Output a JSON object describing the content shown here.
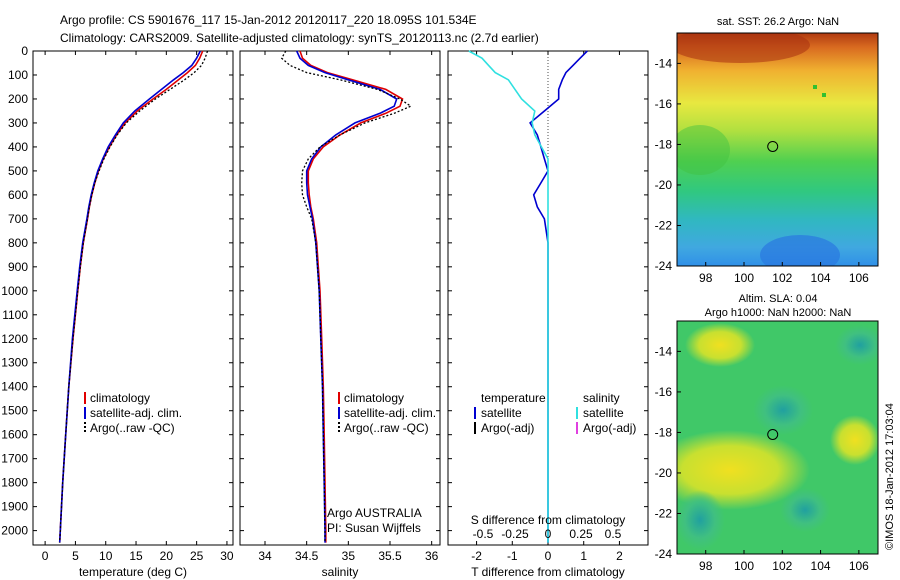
{
  "title": {
    "line1": "Argo profile: CS 5901676_117 15-Jan-2012 20120117_220 18.095S 101.534E",
    "line2": "Climatology: CARS2009. Satellite-adjusted climatology: synTS_20120113.nc (2.7d earlier)"
  },
  "side_text": "©IMOS 18-Jan-2012 17:03:04",
  "colors": {
    "climatology": "#e00000",
    "satellite": "#0000d0",
    "argo": "#000000",
    "sal_satellite": "#30e0e0",
    "sal_argo": "#e040e0"
  },
  "chart_data": [
    {
      "type": "line",
      "name": "temperature-profile",
      "xlabel": "temperature (deg C)",
      "xlim": [
        -2,
        31
      ],
      "xticks": [
        0,
        5,
        10,
        15,
        20,
        25,
        30
      ],
      "ylim": [
        0,
        2060
      ],
      "yticks": [
        0,
        100,
        200,
        300,
        400,
        500,
        600,
        700,
        800,
        900,
        1000,
        1100,
        1200,
        1300,
        1400,
        1500,
        1600,
        1700,
        1800,
        1900,
        2000
      ],
      "legend": [
        "climatology",
        "satellite-adj. clim.",
        "Argo(..raw -QC)"
      ],
      "series": [
        {
          "name": "climatology",
          "depth": [
            0,
            30,
            60,
            90,
            120,
            160,
            200,
            250,
            300,
            350,
            400,
            450,
            500,
            550,
            600,
            650,
            700,
            800,
            900,
            1000,
            1200,
            1400,
            1600,
            1800,
            2000,
            2050
          ],
          "values": [
            26.0,
            25.5,
            24.8,
            23.5,
            22.0,
            20.0,
            17.8,
            15.2,
            13.2,
            11.8,
            10.6,
            9.6,
            8.8,
            8.2,
            7.7,
            7.3,
            7.0,
            6.3,
            5.8,
            5.4,
            4.6,
            3.9,
            3.4,
            2.9,
            2.5,
            2.4
          ]
        },
        {
          "name": "satellite-adj. clim.",
          "depth": [
            0,
            30,
            60,
            90,
            120,
            160,
            200,
            250,
            300,
            350,
            400,
            450,
            500,
            550,
            600,
            650,
            700,
            800,
            900,
            1000,
            1200,
            1400,
            1600,
            1800,
            2000,
            2050
          ],
          "values": [
            25.6,
            25.0,
            24.2,
            22.8,
            21.2,
            19.2,
            17.2,
            14.8,
            12.9,
            11.6,
            10.4,
            9.5,
            8.7,
            8.1,
            7.6,
            7.2,
            6.9,
            6.2,
            5.7,
            5.3,
            4.5,
            3.9,
            3.4,
            2.9,
            2.5,
            2.4
          ]
        },
        {
          "name": "Argo(..raw -QC)",
          "depth": [
            0,
            30,
            60,
            90,
            120,
            160,
            200,
            250,
            300,
            350,
            400,
            450,
            500,
            550,
            600,
            650,
            700,
            800,
            900,
            1000,
            1200,
            1400,
            1600,
            1800,
            2000,
            2050
          ],
          "values": [
            26.8,
            26.4,
            25.8,
            24.6,
            23.0,
            20.6,
            18.2,
            15.6,
            13.4,
            11.9,
            10.7,
            9.7,
            8.9,
            8.2,
            7.7,
            7.3,
            7.0,
            6.3,
            5.8,
            5.4,
            4.6,
            3.9,
            3.4,
            2.9,
            2.5,
            2.4
          ]
        }
      ]
    },
    {
      "type": "line",
      "name": "salinity-profile",
      "xlabel": "salinity",
      "xlim": [
        33.7,
        36.1
      ],
      "xticks": [
        34,
        34.5,
        35,
        35.5,
        36
      ],
      "xticklabels": [
        "34",
        "34.5",
        "35",
        "35.5",
        "36"
      ],
      "ylim": [
        0,
        2060
      ],
      "legend": [
        "climatology",
        "satellite-adj. clim.",
        "Argo(..raw -QC)"
      ],
      "annotation": [
        "Argo AUSTRALIA",
        "PI: Susan Wijffels"
      ],
      "series": [
        {
          "name": "climatology",
          "depth": [
            0,
            30,
            60,
            90,
            120,
            160,
            200,
            230,
            260,
            300,
            350,
            400,
            450,
            500,
            550,
            600,
            650,
            700,
            800,
            900,
            1000,
            1200,
            1400,
            1600,
            1800,
            2000,
            2050
          ],
          "values": [
            34.42,
            34.45,
            34.55,
            34.75,
            35.05,
            35.45,
            35.65,
            35.62,
            35.45,
            35.15,
            34.9,
            34.7,
            34.58,
            34.52,
            34.52,
            34.53,
            34.55,
            34.58,
            34.62,
            34.64,
            34.66,
            34.68,
            34.7,
            34.71,
            34.72,
            34.73,
            34.73
          ]
        },
        {
          "name": "satellite-adj. clim.",
          "depth": [
            0,
            30,
            60,
            90,
            120,
            160,
            200,
            230,
            260,
            300,
            350,
            400,
            450,
            500,
            550,
            600,
            650,
            700,
            800,
            900,
            1000,
            1200,
            1400,
            1600,
            1800,
            2000,
            2050
          ],
          "values": [
            34.38,
            34.42,
            34.52,
            34.72,
            35.0,
            35.38,
            35.58,
            35.55,
            35.38,
            35.08,
            34.85,
            34.67,
            34.56,
            34.5,
            34.5,
            34.51,
            34.54,
            34.57,
            34.61,
            34.63,
            34.65,
            34.67,
            34.69,
            34.7,
            34.71,
            34.72,
            34.72
          ]
        },
        {
          "name": "Argo(..raw -QC)",
          "depth": [
            0,
            30,
            60,
            90,
            120,
            160,
            200,
            230,
            260,
            300,
            350,
            400,
            450,
            500,
            550,
            600,
            650,
            700,
            800,
            900,
            1000,
            1200,
            1400,
            1600,
            1800,
            2000,
            2050
          ],
          "values": [
            34.25,
            34.2,
            34.3,
            34.5,
            34.9,
            35.35,
            35.62,
            35.75,
            35.55,
            35.2,
            34.9,
            34.66,
            34.52,
            34.45,
            34.44,
            34.45,
            34.5,
            34.56,
            34.61,
            34.63,
            34.65,
            34.67,
            34.69,
            34.7,
            34.71,
            34.72,
            34.72
          ]
        }
      ]
    },
    {
      "type": "line",
      "name": "difference-profile",
      "xlabel": "T difference from climatology",
      "xlim": [
        -2.8,
        2.8
      ],
      "xticks": [
        -2,
        -1,
        0,
        1,
        2
      ],
      "top_axis_label": "S difference from climatology",
      "top_ticks": [
        "-0.5",
        "-0.25",
        "0",
        "0.25",
        "0.5"
      ],
      "ylim": [
        0,
        2060
      ],
      "legend_temperature": [
        "temperature",
        "satellite",
        "Argo(-adj)"
      ],
      "legend_salinity": [
        "salinity",
        "satellite",
        "Argo(-adj)"
      ],
      "series": [
        {
          "name": "temperature satellite",
          "depth": [
            0,
            30,
            60,
            90,
            120,
            160,
            200,
            250,
            300,
            350,
            400,
            450,
            500,
            550,
            600,
            650,
            700,
            800,
            900,
            1000,
            1200,
            1400,
            1600,
            1800,
            2000,
            2050
          ],
          "values": [
            1.1,
            0.9,
            0.7,
            0.5,
            0.4,
            0.3,
            0.3,
            -0.1,
            -0.5,
            -0.3,
            -0.2,
            -0.1,
            0.0,
            -0.2,
            -0.4,
            -0.3,
            -0.1,
            0.0,
            0.0,
            0.0,
            0.0,
            0.0,
            0.0,
            0.0,
            0.0,
            0.0
          ]
        },
        {
          "name": "salinity satellite",
          "depth": [
            0,
            30,
            60,
            90,
            120,
            160,
            200,
            250,
            300,
            350,
            400,
            450,
            500,
            550,
            600,
            650,
            700,
            800,
            900,
            1000,
            1200,
            1400,
            1600,
            1800,
            2000,
            2050
          ],
          "values": [
            -0.6,
            -0.5,
            -0.45,
            -0.4,
            -0.3,
            -0.25,
            -0.2,
            -0.1,
            -0.12,
            -0.1,
            -0.05,
            0.0,
            0.0,
            0.0,
            0.0,
            0.0,
            0.0,
            0.0,
            0.0,
            0.0,
            0.0,
            0.0,
            0.0,
            0.0,
            0.0,
            0.0
          ]
        }
      ]
    },
    {
      "type": "heatmap",
      "name": "sst-map",
      "title": "sat. SST: 26.2 Argo: NaN",
      "xlim": [
        96.5,
        107
      ],
      "ylim": [
        -24,
        -12.5
      ],
      "xticks": [
        98,
        100,
        102,
        104,
        106
      ],
      "yticks": [
        -14,
        -16,
        -18,
        -20,
        -22,
        -24
      ],
      "marker": [
        101.5,
        -18.1
      ]
    },
    {
      "type": "heatmap",
      "name": "sla-map",
      "title_line1": "Altim. SLA: 0.04",
      "title_line2": "Argo h1000: NaN h2000: NaN",
      "xlim": [
        96.5,
        107
      ],
      "ylim": [
        -24,
        -12.5
      ],
      "xticks": [
        98,
        100,
        102,
        104,
        106
      ],
      "yticks": [
        -14,
        -16,
        -18,
        -20,
        -22,
        -24
      ],
      "marker": [
        101.5,
        -18.1
      ]
    }
  ]
}
